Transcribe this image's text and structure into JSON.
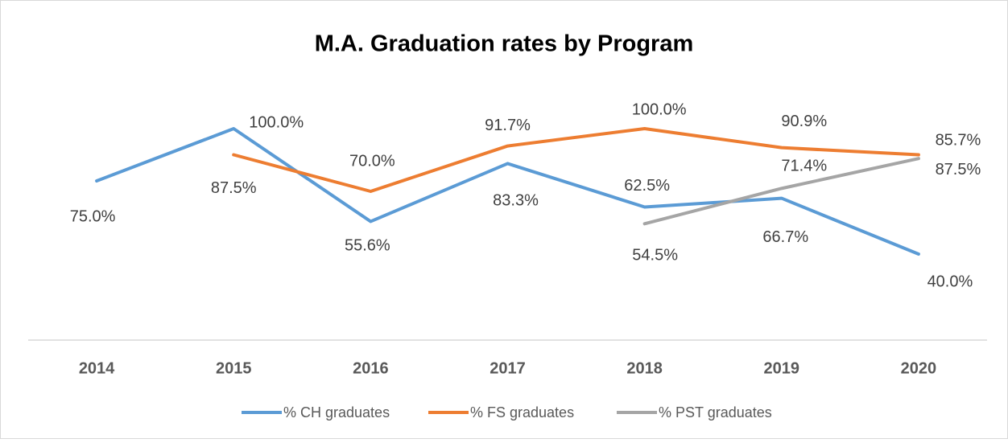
{
  "chart_data": {
    "type": "line",
    "title": "M.A. Graduation rates by Program",
    "categories": [
      "2014",
      "2015",
      "2016",
      "2017",
      "2018",
      "2019",
      "2020"
    ],
    "ylim": [
      0,
      120
    ],
    "legend": "bottom",
    "series": [
      {
        "name": "% CH graduates",
        "color": "#5b9bd5",
        "values": [
          75.0,
          100.0,
          55.6,
          83.3,
          62.5,
          66.7,
          40.0
        ],
        "value_labels": [
          "75.0%",
          "100.0%",
          "55.6%",
          "83.3%",
          "62.5%",
          "66.7%",
          "40.0%"
        ]
      },
      {
        "name": "% FS graduates",
        "color": "#ed7d31",
        "values": [
          null,
          87.5,
          70.0,
          91.7,
          100.0,
          90.9,
          87.5
        ],
        "value_labels": [
          null,
          "87.5%",
          "70.0%",
          "91.7%",
          "100.0%",
          "90.9%",
          "87.5%"
        ]
      },
      {
        "name": "% PST graduates",
        "color": "#a5a5a5",
        "values": [
          null,
          null,
          null,
          null,
          54.5,
          71.4,
          85.7
        ],
        "value_labels": [
          null,
          null,
          null,
          null,
          "54.5%",
          "71.4%",
          "85.7%"
        ]
      }
    ]
  }
}
